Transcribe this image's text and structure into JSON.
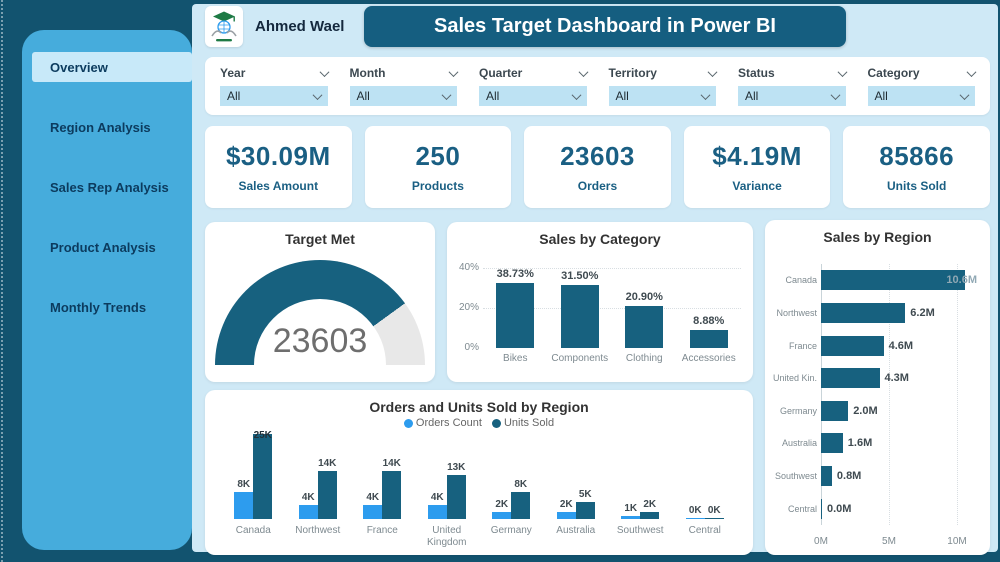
{
  "colors": {
    "page_bg": "#12536F",
    "banner": "#155E80",
    "sidebar": "#46ACDC",
    "sidebar_active": "#C8E9F9",
    "sidebar_text": "#0C3B5E",
    "main_bg": "#CFE9F6",
    "kpi_text": "#1A5F83",
    "bar_dark": "#17617F",
    "bar_light": "#2D9CEE",
    "dropdown_bg": "#BDE2F3"
  },
  "header": {
    "brand_name": "Ahmed Wael",
    "title": "Sales Target Dashboard in Power BI",
    "logo": "graduation-cap-emblem"
  },
  "sidebar": {
    "items": [
      {
        "label": "Overview",
        "active": true
      },
      {
        "label": "Region Analysis",
        "active": false
      },
      {
        "label": "Sales Rep Analysis",
        "active": false
      },
      {
        "label": "Product Analysis",
        "active": false
      },
      {
        "label": "Monthly Trends",
        "active": false
      }
    ]
  },
  "filters": [
    {
      "label": "Year",
      "value": "All"
    },
    {
      "label": "Month",
      "value": "All"
    },
    {
      "label": "Quarter",
      "value": "All"
    },
    {
      "label": "Territory",
      "value": "All"
    },
    {
      "label": "Status",
      "value": "All"
    },
    {
      "label": "Category",
      "value": "All"
    }
  ],
  "kpis": [
    {
      "value": "$30.09M",
      "label": "Sales Amount"
    },
    {
      "value": "250",
      "label": "Products"
    },
    {
      "value": "23603",
      "label": "Orders"
    },
    {
      "value": "$4.19M",
      "label": "Variance"
    },
    {
      "value": "85866",
      "label": "Units Sold"
    }
  ],
  "chart_data": [
    {
      "type": "gauge",
      "title": "Target Met",
      "value": "23603",
      "fill_pct": 80
    },
    {
      "type": "bar",
      "title": "Sales by Category",
      "categories": [
        "Bikes",
        "Components",
        "Clothing",
        "Accessories"
      ],
      "values": [
        38.73,
        31.5,
        20.9,
        8.88
      ],
      "labels": [
        "38.73%",
        "31.50%",
        "20.90%",
        "8.88%"
      ],
      "yticks": [
        "40%",
        "20%",
        "0%"
      ],
      "ylim": [
        0,
        40
      ],
      "grid": true
    },
    {
      "type": "bar",
      "orientation": "horizontal",
      "title": "Sales by Region",
      "categories": [
        "Canada",
        "Northwest",
        "France",
        "United Kin...",
        "Germany",
        "Australia",
        "Southwest",
        "Central"
      ],
      "values": [
        10.6,
        6.2,
        4.6,
        4.3,
        2.0,
        1.6,
        0.8,
        0.0
      ],
      "labels": [
        "10.6M",
        "6.2M",
        "4.6M",
        "4.3M",
        "2.0M",
        "1.6M",
        "0.8M",
        "0.0M"
      ],
      "xticks": [
        "0M",
        "5M",
        "10M"
      ],
      "xlim": [
        0,
        12
      ]
    },
    {
      "type": "bar",
      "grouped": true,
      "title": "Orders and Units Sold by Region",
      "categories": [
        "Canada",
        "Northwest",
        "France",
        "United Kingdom",
        "Germany",
        "Australia",
        "Southwest",
        "Central"
      ],
      "series": [
        {
          "name": "Orders Count",
          "values": [
            8,
            4,
            4,
            4,
            2,
            2,
            1,
            0
          ],
          "labels": [
            "8K",
            "4K",
            "4K",
            "4K",
            "2K",
            "2K",
            "1K",
            "0K"
          ]
        },
        {
          "name": "Units Sold",
          "values": [
            25,
            14,
            14,
            13,
            8,
            5,
            2,
            0
          ],
          "labels": [
            "25K",
            "14K",
            "14K",
            "13K",
            "8K",
            "5K",
            "2K",
            "0K"
          ]
        }
      ],
      "unit": "K"
    }
  ]
}
